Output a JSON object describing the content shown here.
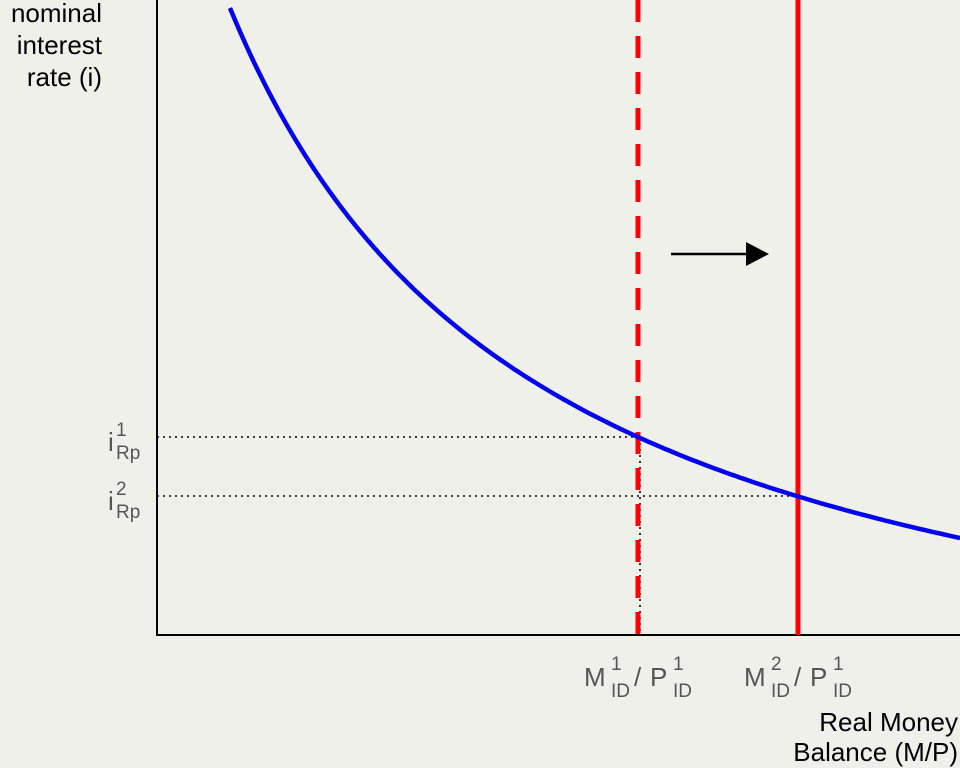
{
  "y_axis_label": [
    "nominal",
    "interest",
    "rate (i)"
  ],
  "y_ticks": [
    {
      "base": "i",
      "sup": "1",
      "sub": "Rp"
    },
    {
      "base": "i",
      "sup": "2",
      "sub": "Rp"
    }
  ],
  "x_ticks": [
    {
      "numerator": {
        "base": "M",
        "sup": "1",
        "sub": "ID"
      },
      "separator": "/",
      "denominator": {
        "base": "P",
        "sup": "1",
        "sub": "ID"
      }
    },
    {
      "numerator": {
        "base": "M",
        "sup": "2",
        "sub": "ID"
      },
      "separator": "/",
      "denominator": {
        "base": "P",
        "sup": "1",
        "sub": "ID"
      }
    }
  ],
  "x_axis_label": [
    "Real Money",
    "Balance (M/P)"
  ]
}
